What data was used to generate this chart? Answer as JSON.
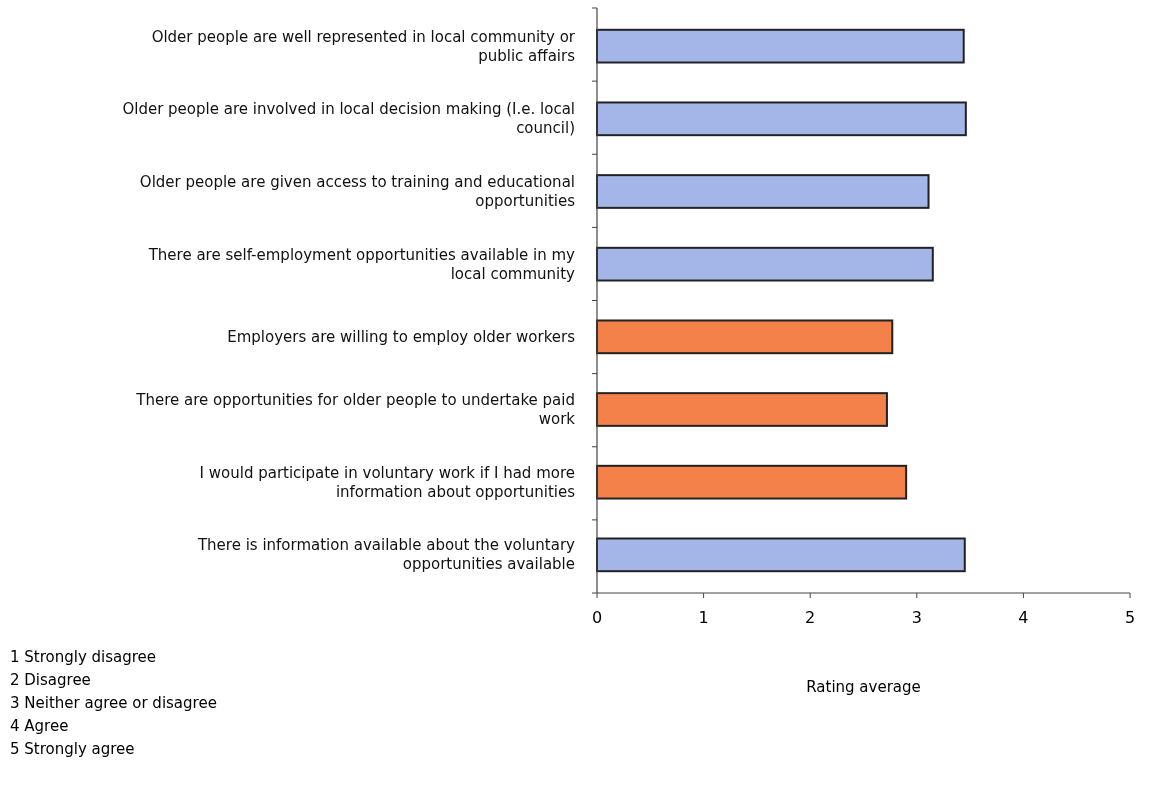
{
  "chart_data": {
    "type": "bar",
    "orientation": "horizontal",
    "xlabel": "Rating average",
    "categories": [
      "Older people are well represented in local community or public affairs",
      "Older people are involved in local decision making (I.e. local council)",
      "Older people are given access to training and educational opportunities",
      "There are self-employment opportunities available in my local community",
      "Employers are willing to employ older workers",
      "There are opportunities for older people to undertake paid work",
      "I would participate in voluntary work if I had more information about opportunities",
      "There is information available about the voluntary opportunities available"
    ],
    "values": [
      3.44,
      3.46,
      3.11,
      3.15,
      2.77,
      2.72,
      2.9,
      3.45
    ],
    "colors": [
      "#a4b5e8",
      "#a4b5e8",
      "#a4b5e8",
      "#a4b5e8",
      "#f4804a",
      "#f4804a",
      "#f4804a",
      "#a4b5e8"
    ],
    "xlim": [
      0,
      5
    ],
    "xticks": [
      0,
      1,
      2,
      3,
      4,
      5
    ],
    "grid": false,
    "annotations": [
      "1 Strongly disagree",
      "2 Disagree",
      "3 Neither agree or disagree",
      "4 Agree",
      "5 Strongly agree"
    ]
  }
}
